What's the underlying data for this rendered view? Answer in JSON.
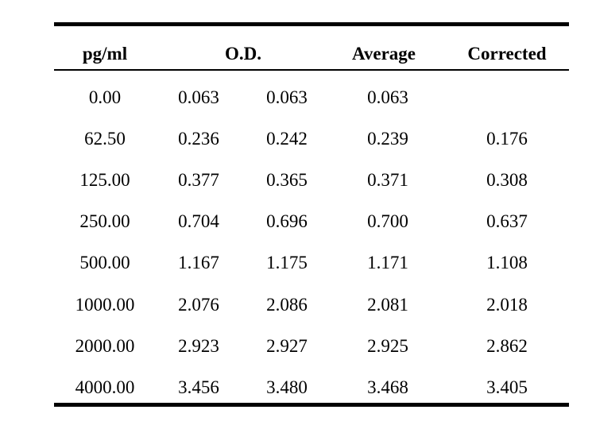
{
  "table": {
    "headers": {
      "concentration": "pg/ml",
      "od": "O.D.",
      "average": "Average",
      "corrected": "Corrected"
    },
    "rows": [
      {
        "concentration": "0.00",
        "od1": "0.063",
        "od2": "0.063",
        "average": "0.063",
        "corrected": ""
      },
      {
        "concentration": "62.50",
        "od1": "0.236",
        "od2": "0.242",
        "average": "0.239",
        "corrected": "0.176"
      },
      {
        "concentration": "125.00",
        "od1": "0.377",
        "od2": "0.365",
        "average": "0.371",
        "corrected": "0.308"
      },
      {
        "concentration": "250.00",
        "od1": "0.704",
        "od2": "0.696",
        "average": "0.700",
        "corrected": "0.637"
      },
      {
        "concentration": "500.00",
        "od1": "1.167",
        "od2": "1.175",
        "average": "1.171",
        "corrected": "1.108"
      },
      {
        "concentration": "1000.00",
        "od1": "2.076",
        "od2": "2.086",
        "average": "2.081",
        "corrected": "2.018"
      },
      {
        "concentration": "2000.00",
        "od1": "2.923",
        "od2": "2.927",
        "average": "2.925",
        "corrected": "2.862"
      },
      {
        "concentration": "4000.00",
        "od1": "3.456",
        "od2": "3.480",
        "average": "3.468",
        "corrected": "3.405"
      }
    ]
  }
}
